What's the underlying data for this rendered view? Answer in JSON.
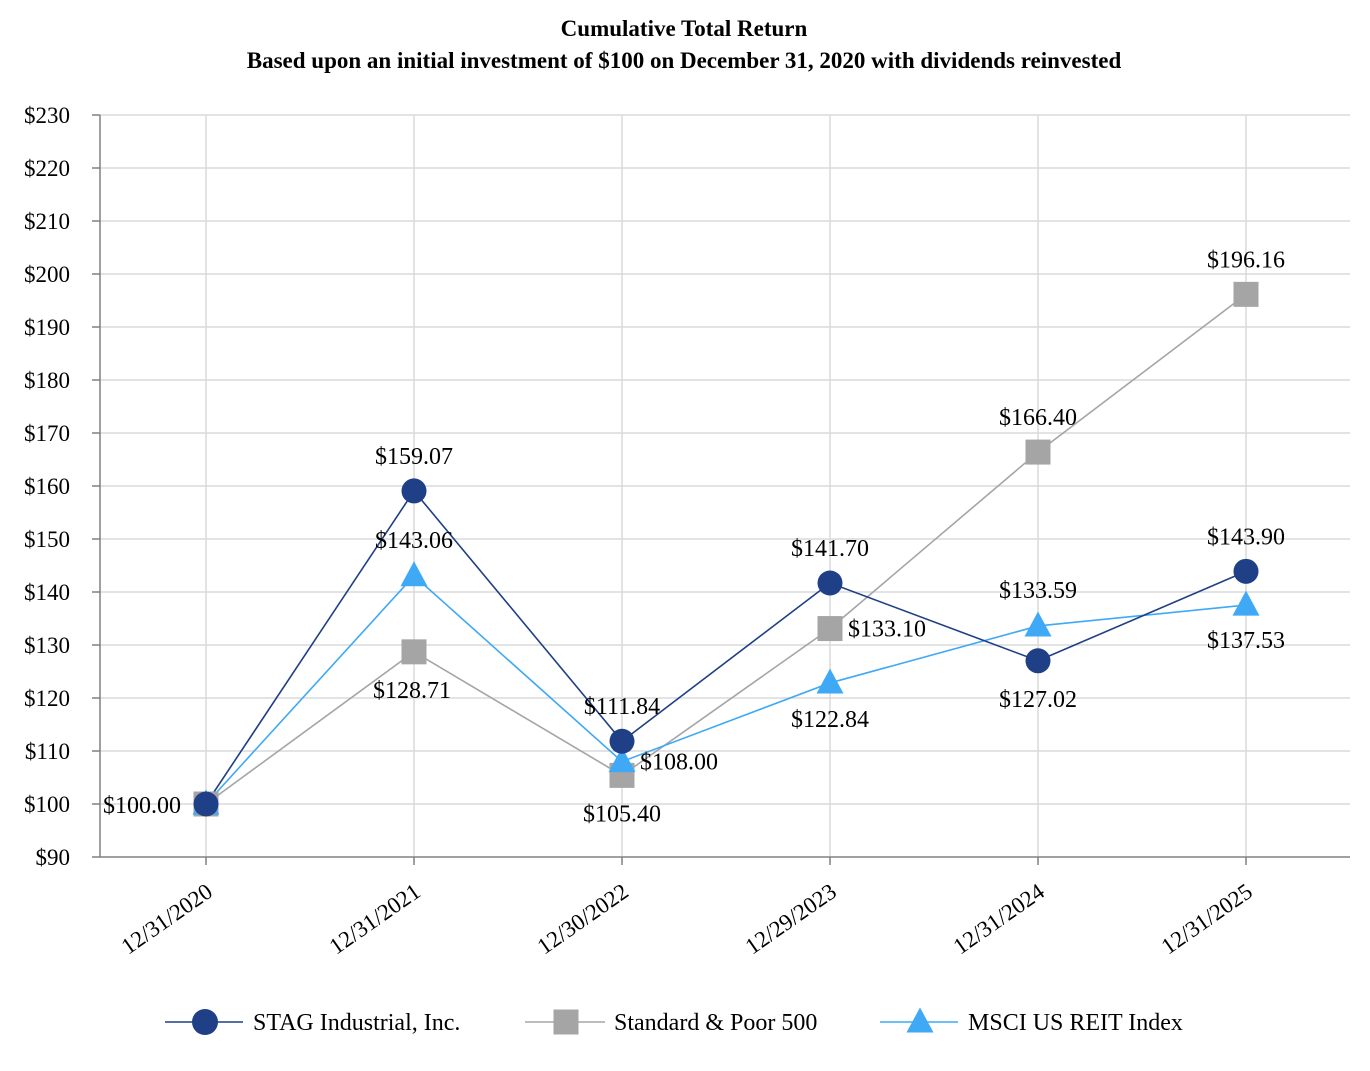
{
  "chart_data": {
    "type": "line",
    "title": "Cumulative Total Return",
    "subtitle": "Based upon an initial investment of $100 on December 31, 2020 with dividends reinvested",
    "xlabel": "",
    "ylabel": "",
    "categories": [
      "12/31/2020",
      "12/31/2021",
      "12/30/2022",
      "12/29/2023",
      "12/31/2024",
      "12/31/2025"
    ],
    "ylim": [
      90,
      230
    ],
    "ytick_step": 10,
    "ytick_labels": [
      "$90",
      "$100",
      "$110",
      "$120",
      "$130",
      "$140",
      "$150",
      "$160",
      "$170",
      "$180",
      "$190",
      "$200",
      "$210",
      "$220",
      "$230"
    ],
    "grid": true,
    "legend_position": "bottom",
    "series": [
      {
        "name": "STAG Industrial, Inc.",
        "marker": "circle",
        "color": "#1F3F86",
        "values": [
          100.0,
          159.07,
          111.84,
          141.7,
          127.02,
          143.9
        ],
        "labels": [
          "$100.00",
          "$159.07",
          "$111.84",
          "$141.70",
          "$127.02",
          "$143.90"
        ]
      },
      {
        "name": "Standard & Poor 500",
        "marker": "square",
        "color": "#A5A5A5",
        "values": [
          100.0,
          128.71,
          105.4,
          133.1,
          166.4,
          196.16
        ],
        "labels": [
          "",
          "$128.71",
          "$105.40",
          "$133.10",
          "$166.40",
          "$196.16"
        ]
      },
      {
        "name": "MSCI US REIT Index",
        "marker": "triangle",
        "color": "#3FA9F5",
        "values": [
          100.0,
          143.06,
          108.0,
          122.84,
          133.59,
          137.53
        ],
        "labels": [
          "",
          "$143.06",
          "$108.00",
          "$122.84",
          "$133.59",
          "$137.53"
        ]
      }
    ]
  }
}
